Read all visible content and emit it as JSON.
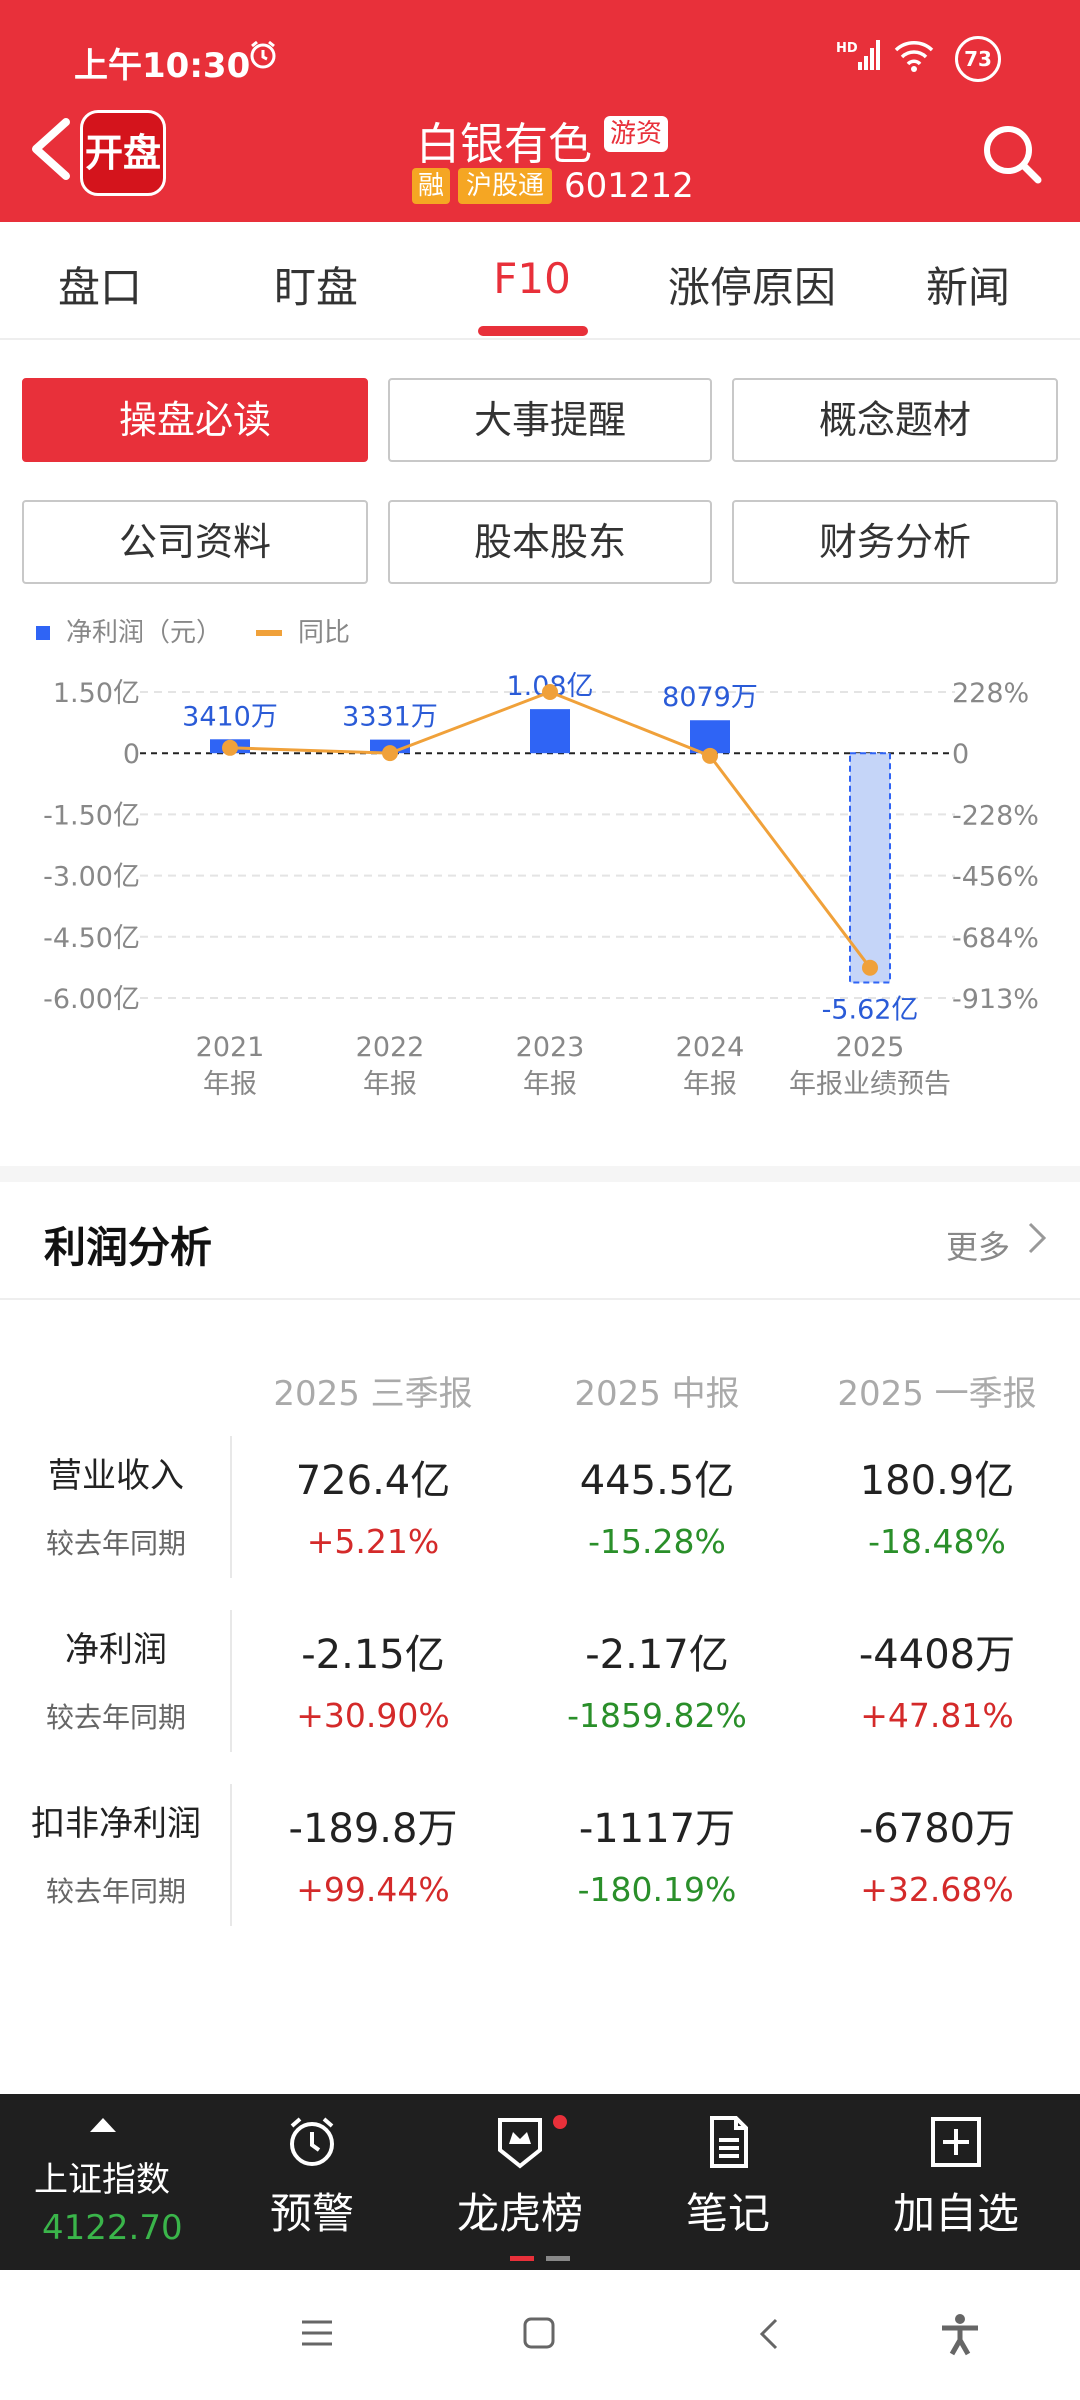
{
  "status": {
    "time": "上午10:30",
    "network": "HD",
    "battery": "73"
  },
  "header": {
    "logo_text": "开盘",
    "stock_name": "白银有色",
    "tag_youzi": "游资",
    "tag_rong": "融",
    "tag_hgt": "沪股通",
    "stock_code": "601212"
  },
  "tabs": [
    {
      "label": "盘口"
    },
    {
      "label": "盯盘"
    },
    {
      "label": "F10"
    },
    {
      "label": "涨停原因"
    },
    {
      "label": "新闻"
    }
  ],
  "active_tab": "F10",
  "sub_buttons": [
    {
      "label": "操盘必读"
    },
    {
      "label": "大事提醒"
    },
    {
      "label": "概念题材"
    },
    {
      "label": "公司资料"
    },
    {
      "label": "股本股东"
    },
    {
      "label": "财务分析"
    }
  ],
  "colors": {
    "brand_red": "#e8303a",
    "bar_blue": "#2f64f5",
    "forecast_bar": "#c5d5f8",
    "line_orange": "#f0a13a",
    "up_red": "#d42a2a",
    "down_green": "#2a8f2a"
  },
  "chart_data": {
    "type": "bar",
    "legend": [
      "净利润（元）",
      "同比"
    ],
    "legend_placement": "top-left",
    "categories": [
      "2021 年报",
      "2022 年报",
      "2023 年报",
      "2024 年报",
      "2025 年报业绩预告"
    ],
    "category_lines": [
      [
        "2021",
        "年报"
      ],
      [
        "2022",
        "年报"
      ],
      [
        "2023",
        "年报"
      ],
      [
        "2024",
        "年报"
      ],
      [
        "2025",
        "年报业绩预告"
      ]
    ],
    "series": [
      {
        "name": "净利润（元）",
        "type": "bar",
        "values": [
          34100000,
          33310000,
          108000000,
          80790000,
          -562000000
        ],
        "labels": [
          "3410万",
          "3331万",
          "1.08亿",
          "8079万",
          "-5.62亿"
        ],
        "forecast_last": true
      },
      {
        "name": "同比",
        "type": "line",
        "axis": "right",
        "values": [
          20,
          0,
          228,
          -10,
          -800
        ]
      }
    ],
    "y_left_ticks": [
      "1.50亿",
      "0",
      "-1.50亿",
      "-3.00亿",
      "-4.50亿",
      "-6.00亿"
    ],
    "y_left_range": [
      -600000000,
      150000000
    ],
    "y_right_ticks": [
      "228%",
      "0",
      "-228%",
      "-456%",
      "-684%",
      "-913%"
    ],
    "y_right_range": [
      -913,
      228
    ],
    "grid": true
  },
  "profit": {
    "title": "利润分析",
    "more": "更多",
    "columns": [
      "2025 三季报",
      "2025 中报",
      "2025 一季报"
    ],
    "sub_label": "较去年同期",
    "rows": [
      {
        "label": "营业收入",
        "values": [
          "726.4亿",
          "445.5亿",
          "180.9亿"
        ],
        "pcts": [
          "+5.21%",
          "-15.28%",
          "-18.48%"
        ]
      },
      {
        "label": "净利润",
        "values": [
          "-2.15亿",
          "-2.17亿",
          "-4408万"
        ],
        "pcts": [
          "+30.90%",
          "-1859.82%",
          "+47.81%"
        ]
      },
      {
        "label": "扣非净利润",
        "values": [
          "-189.8万",
          "-1117万",
          "-6780万"
        ],
        "pcts": [
          "+99.44%",
          "-180.19%",
          "+32.68%"
        ]
      }
    ]
  },
  "bottom_bar": {
    "index_name": "上证指数",
    "index_value": "4122.70",
    "items": [
      {
        "label": "预警",
        "icon": "alarm-clock-icon"
      },
      {
        "label": "龙虎榜",
        "icon": "crown-shield-icon"
      },
      {
        "label": "笔记",
        "icon": "note-icon"
      },
      {
        "label": "加自选",
        "icon": "plus-box-icon"
      }
    ]
  }
}
